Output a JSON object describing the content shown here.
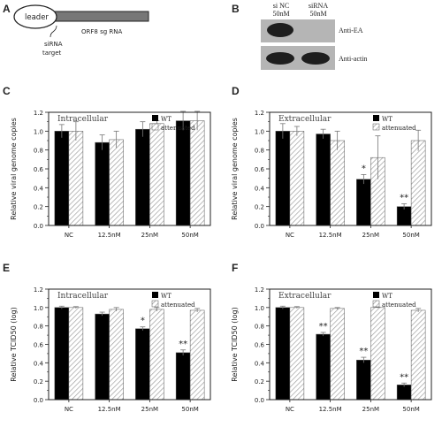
{
  "panel_letters": [
    "A",
    "B",
    "C",
    "D",
    "E",
    "F"
  ],
  "panel_a": {
    "leader_label": "leader",
    "orf_label": "ORF8 sg RNA",
    "sirna_target_line1": "siRNA",
    "sirna_target_line2": "target",
    "colors": {
      "bar": "#777777",
      "outline": "#222222"
    }
  },
  "panel_b": {
    "lanes": [
      {
        "line1": "si NC",
        "line2": "50nM"
      },
      {
        "line1": "siRNA",
        "line2": "50nM"
      }
    ],
    "antibodies": [
      "Anti-EA",
      "Anti-actin"
    ],
    "colors": {
      "blot_bg": "#b5b5b5",
      "band": "#1e1e1e"
    }
  },
  "legend": {
    "wt": "WT",
    "attenuated": "attenuated"
  },
  "colors": {
    "wt": "#000000",
    "attenuated_hatch": "#999999",
    "axis": "#222222"
  },
  "chart_data": [
    {
      "id": "C",
      "type": "bar",
      "title": "Intracellular",
      "categories": [
        "NC",
        "12.5nM",
        "25nM",
        "50nM"
      ],
      "ylabel": "Relative viral genome copies",
      "ylim": [
        0,
        1.2
      ],
      "yticks": [
        "0.0",
        "0.2",
        "0.4",
        "0.6",
        "0.8",
        "1.0",
        "1.2"
      ],
      "series": [
        {
          "name": "WT",
          "values": [
            1.0,
            0.88,
            1.02,
            1.11
          ],
          "errors": [
            0.07,
            0.08,
            0.08,
            0.1
          ]
        },
        {
          "name": "attenuated",
          "values": [
            1.0,
            0.91,
            1.08,
            1.11
          ],
          "errors": [
            0.1,
            0.09,
            0.03,
            0.1
          ]
        }
      ],
      "annotations": [
        [],
        []
      ],
      "legend_position": "top-right"
    },
    {
      "id": "D",
      "type": "bar",
      "title": "Extracellular",
      "categories": [
        "NC",
        "12.5nM",
        "25nM",
        "50nM"
      ],
      "ylabel": "Relative viral genome copies",
      "ylim": [
        0,
        1.2
      ],
      "yticks": [
        "0.0",
        "0.2",
        "0.4",
        "0.6",
        "0.8",
        "1.0",
        "1.2"
      ],
      "series": [
        {
          "name": "WT",
          "values": [
            1.0,
            0.97,
            0.49,
            0.2
          ],
          "errors": [
            0.08,
            0.05,
            0.05,
            0.03
          ]
        },
        {
          "name": "attenuated",
          "values": [
            1.0,
            0.9,
            0.72,
            0.9
          ],
          "errors": [
            0.05,
            0.1,
            0.23,
            0.11
          ]
        }
      ],
      "annotations": [
        [
          "",
          "",
          "*",
          "**"
        ],
        []
      ],
      "legend_position": "top-right"
    },
    {
      "id": "E",
      "type": "bar",
      "title": "Intracellular",
      "categories": [
        "NC",
        "12.5nM",
        "25nM",
        "50nM"
      ],
      "ylabel": "Relative TCID50 (log)",
      "ylim": [
        0,
        1.2
      ],
      "yticks": [
        "0.0",
        "0.2",
        "0.4",
        "0.6",
        "0.8",
        "1.0",
        "1.2"
      ],
      "series": [
        {
          "name": "WT",
          "values": [
            1.0,
            0.93,
            0.77,
            0.51
          ],
          "errors": [
            0.015,
            0.02,
            0.02,
            0.03
          ]
        },
        {
          "name": "attenuated",
          "values": [
            1.0,
            0.98,
            0.98,
            0.97
          ],
          "errors": [
            0.01,
            0.02,
            0.02,
            0.02
          ]
        }
      ],
      "annotations": [
        [
          "",
          "",
          "*",
          "**"
        ],
        []
      ],
      "legend_position": "top-right"
    },
    {
      "id": "F",
      "type": "bar",
      "title": "Extracellular",
      "categories": [
        "NC",
        "12.5nM",
        "25nM",
        "50nM"
      ],
      "ylabel": "Relative TCID50 (log)",
      "ylim": [
        0,
        1.2
      ],
      "yticks": [
        "0.0",
        "0.2",
        "0.4",
        "0.6",
        "0.8",
        "1.0",
        "1.2"
      ],
      "series": [
        {
          "name": "WT",
          "values": [
            1.0,
            0.71,
            0.43,
            0.16
          ],
          "errors": [
            0.015,
            0.02,
            0.03,
            0.02
          ]
        },
        {
          "name": "attenuated",
          "values": [
            1.0,
            0.99,
            1.0,
            0.97
          ],
          "errors": [
            0.01,
            0.01,
            0.005,
            0.02
          ]
        }
      ],
      "annotations": [
        [
          "",
          "**",
          "**",
          "**"
        ],
        []
      ],
      "legend_position": "top-right"
    }
  ]
}
